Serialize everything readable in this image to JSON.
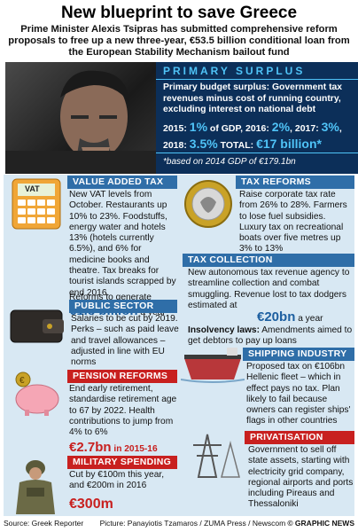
{
  "header": {
    "title": "New blueprint to save Greece",
    "subtitle": "Prime Minister Alexis Tsipras has submitted comprehensive reform proposals to free up a new three-year, €53.5 billion conditional loan from the European Stability Mechanism bailout fund"
  },
  "primary_surplus": {
    "heading": "PRIMARY SURPLUS",
    "definition": "Primary budget surplus: Government tax revenues minus cost of running country, excluding interest on national debt",
    "y2015_label": "2015: ",
    "y2015_value": "1%",
    "y2015_suffix": " of GDP, ",
    "y2016_label": "2016: ",
    "y2016_value": "2%",
    "y2017_label": ", 2017: ",
    "y2017_value": "3%",
    "y2017_suffix": ",",
    "y2018_label": "2018: ",
    "y2018_value": "3.5%",
    "total_label": " TOTAL: ",
    "total_value": "€17 billion*",
    "footnote": "*based on 2014 GDP of €179.1bn"
  },
  "vat": {
    "heading": "VALUE ADDED TAX",
    "icon_label": "VAT",
    "text": "New VAT levels from October. Restaurants up 10% to 23%. Foodstuffs, energy water and hotels 13% (hotels currently 6.5%), and 6% for medicine books and theatre. Tax breaks for tourist islands scrapped by end 2016.",
    "generate_text": "Reforms to generate",
    "generate_value": "€1.8 billion",
    "generate_suffix": " a year"
  },
  "tax_reforms": {
    "heading": "TAX REFORMS",
    "text": "Raise corporate tax rate from 26% to 28%. Farmers to lose fuel subsidies. Luxury tax on recreational boats over five metres up 3% to 13%"
  },
  "tax_collection": {
    "heading": "TAX COLLECTION",
    "text": "New autonomous tax revenue agency to streamline collection and combat smuggling. Revenue lost to tax dodgers estimated at",
    "value": "€20bn",
    "suffix": " a year",
    "insolvency_label": "Insolvency laws:",
    "insolvency_text": " Amendments aimed to get debtors to pay up loans"
  },
  "public_sector": {
    "heading": "PUBLIC SECTOR",
    "text": "Salaries to be cut by 2019. Perks – such as paid leave and travel allowances – adjusted in line with EU norms"
  },
  "shipping": {
    "heading": "SHIPPING INDUSTRY",
    "text": "Proposed tax on €106bn Hellenic fleet – which in effect pays no tax. Plan likely to fail because owners can register ships' flags in other countries"
  },
  "pension": {
    "heading": "PENSION REFORMS",
    "text": "End early retirement, standardise retirement age to 67 by 2022. Health contributions to jump from 4% to 6%",
    "value": "€2.7bn",
    "suffix": " in 2015-16"
  },
  "privatisation": {
    "heading": "PRIVATISATION",
    "text": "Government to sell off state assets, starting with electricity grid company, regional airports and ports including Pireaus and Thessaloniki"
  },
  "military": {
    "heading": "MILITARY SPENDING",
    "text": "Cut by €100m this year, and €200m in 2016",
    "value": "€300m"
  },
  "footer": {
    "source": "Source: Greek Reporter",
    "picture": "Picture: Panayiotis Tzamaros / ZUMA Press / Newscom",
    "credit": "© GRAPHIC NEWS"
  },
  "colors": {
    "blue_bar": "#2f6ea8",
    "red_bar": "#c8201f",
    "navy_box": "#0c2f59",
    "accent_cyan": "#4fc3f7"
  }
}
